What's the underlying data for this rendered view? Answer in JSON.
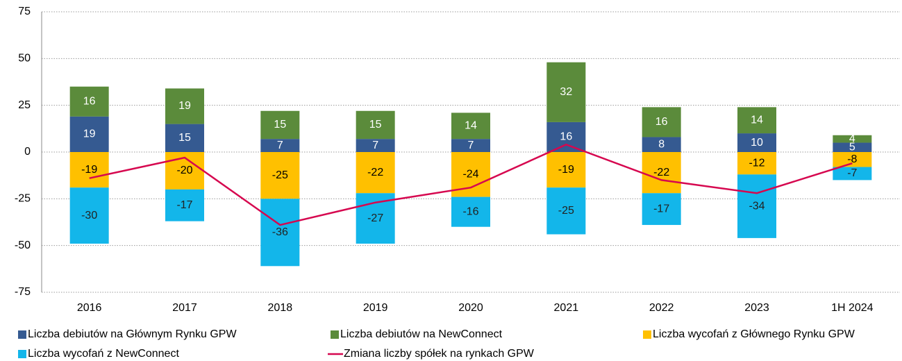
{
  "chart_data": {
    "type": "stacked_bar_line",
    "categories": [
      "2016",
      "2017",
      "2018",
      "2019",
      "2020",
      "2021",
      "2022",
      "2023",
      "1H 2024"
    ],
    "series": [
      {
        "name": "Liczba debiutów na Głównym Rynku GPW",
        "color": "#355a91",
        "type": "bar",
        "label_color": "#ffffff",
        "values": [
          19,
          15,
          7,
          7,
          7,
          16,
          8,
          10,
          5
        ]
      },
      {
        "name": "Liczba debiutów na NewConnect",
        "color": "#5b8b3b",
        "type": "bar",
        "label_color": "#ffffff",
        "values": [
          16,
          19,
          15,
          15,
          14,
          32,
          16,
          14,
          4
        ]
      },
      {
        "name": "Liczba wycofań z Głównego Rynku GPW",
        "color": "#ffc000",
        "type": "bar",
        "label_color": "#000000",
        "values": [
          -19,
          -20,
          -25,
          -22,
          -24,
          -19,
          -22,
          -12,
          -8
        ]
      },
      {
        "name": "Liczba wycofań z NewConnect",
        "color": "#13b6ea",
        "type": "bar",
        "label_color": "#222222",
        "values": [
          -30,
          -17,
          -36,
          -27,
          -16,
          -25,
          -17,
          -34,
          -7
        ]
      },
      {
        "name": "Zmiana liczby spółek na rynkach GPW",
        "color": "#d6074f",
        "type": "line",
        "values": [
          -14,
          -3,
          -39,
          -27,
          -19,
          4,
          -15,
          -22,
          -6
        ]
      }
    ],
    "ylim": [
      -75,
      75
    ],
    "yticks": [
      -75,
      -50,
      -25,
      0,
      25,
      50,
      75
    ],
    "grid": true
  }
}
